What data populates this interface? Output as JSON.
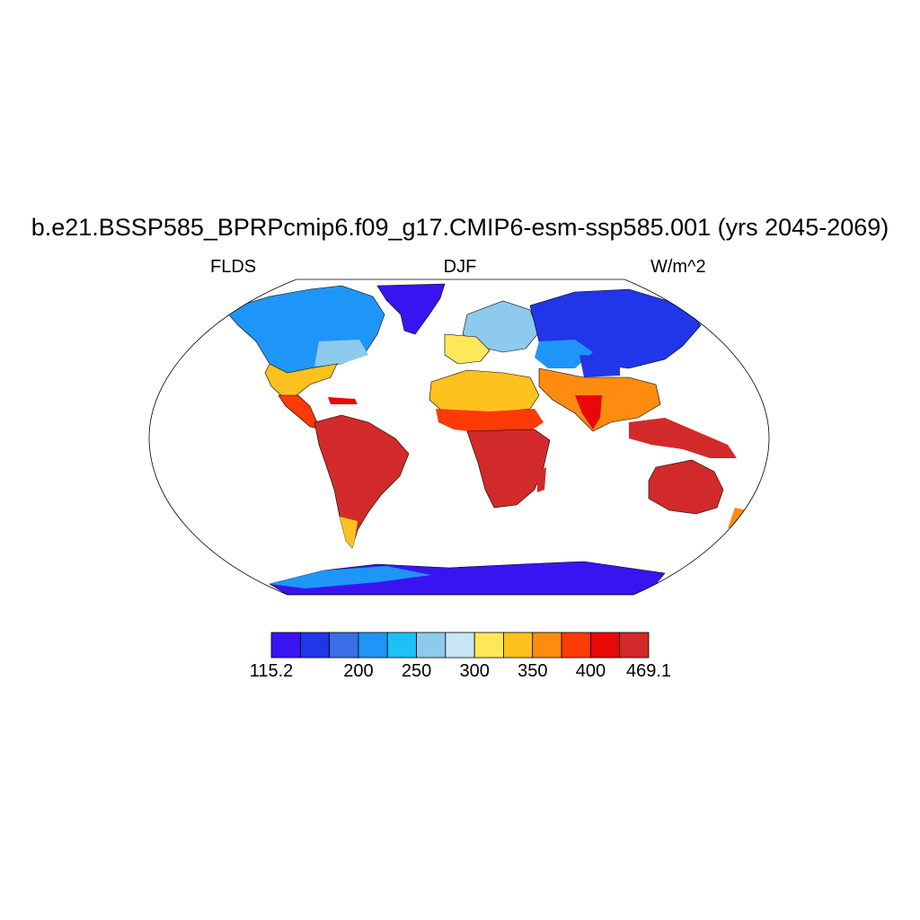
{
  "title": "b.e21.BSSP585_BPRPcmip6.f09_g17.CMIP6-esm-ssp585.001 (yrs 2045-2069)",
  "subtitle_left": "FLDS",
  "subtitle_center": "DJF",
  "subtitle_right": "W/m^2",
  "colorbar": {
    "colors": [
      "#3a14f0",
      "#2036e8",
      "#3a6ee6",
      "#1e96f8",
      "#1ec0f8",
      "#8ecaec",
      "#c8e6f5",
      "#fee85a",
      "#fec21e",
      "#fe8c10",
      "#fe3a06",
      "#e80808",
      "#d22a2a"
    ],
    "labels": [
      "115.2",
      "200",
      "250",
      "300",
      "350",
      "400",
      "469.1"
    ]
  },
  "legend_ticks": [
    {
      "label": "115.2",
      "frac": 0.0
    },
    {
      "label": "200",
      "frac": 0.2308
    },
    {
      "label": "250",
      "frac": 0.3846
    },
    {
      "label": "300",
      "frac": 0.5385
    },
    {
      "label": "350",
      "frac": 0.6923
    },
    {
      "label": "400",
      "frac": 0.8462
    },
    {
      "label": "469.1",
      "frac": 1.0
    }
  ]
}
